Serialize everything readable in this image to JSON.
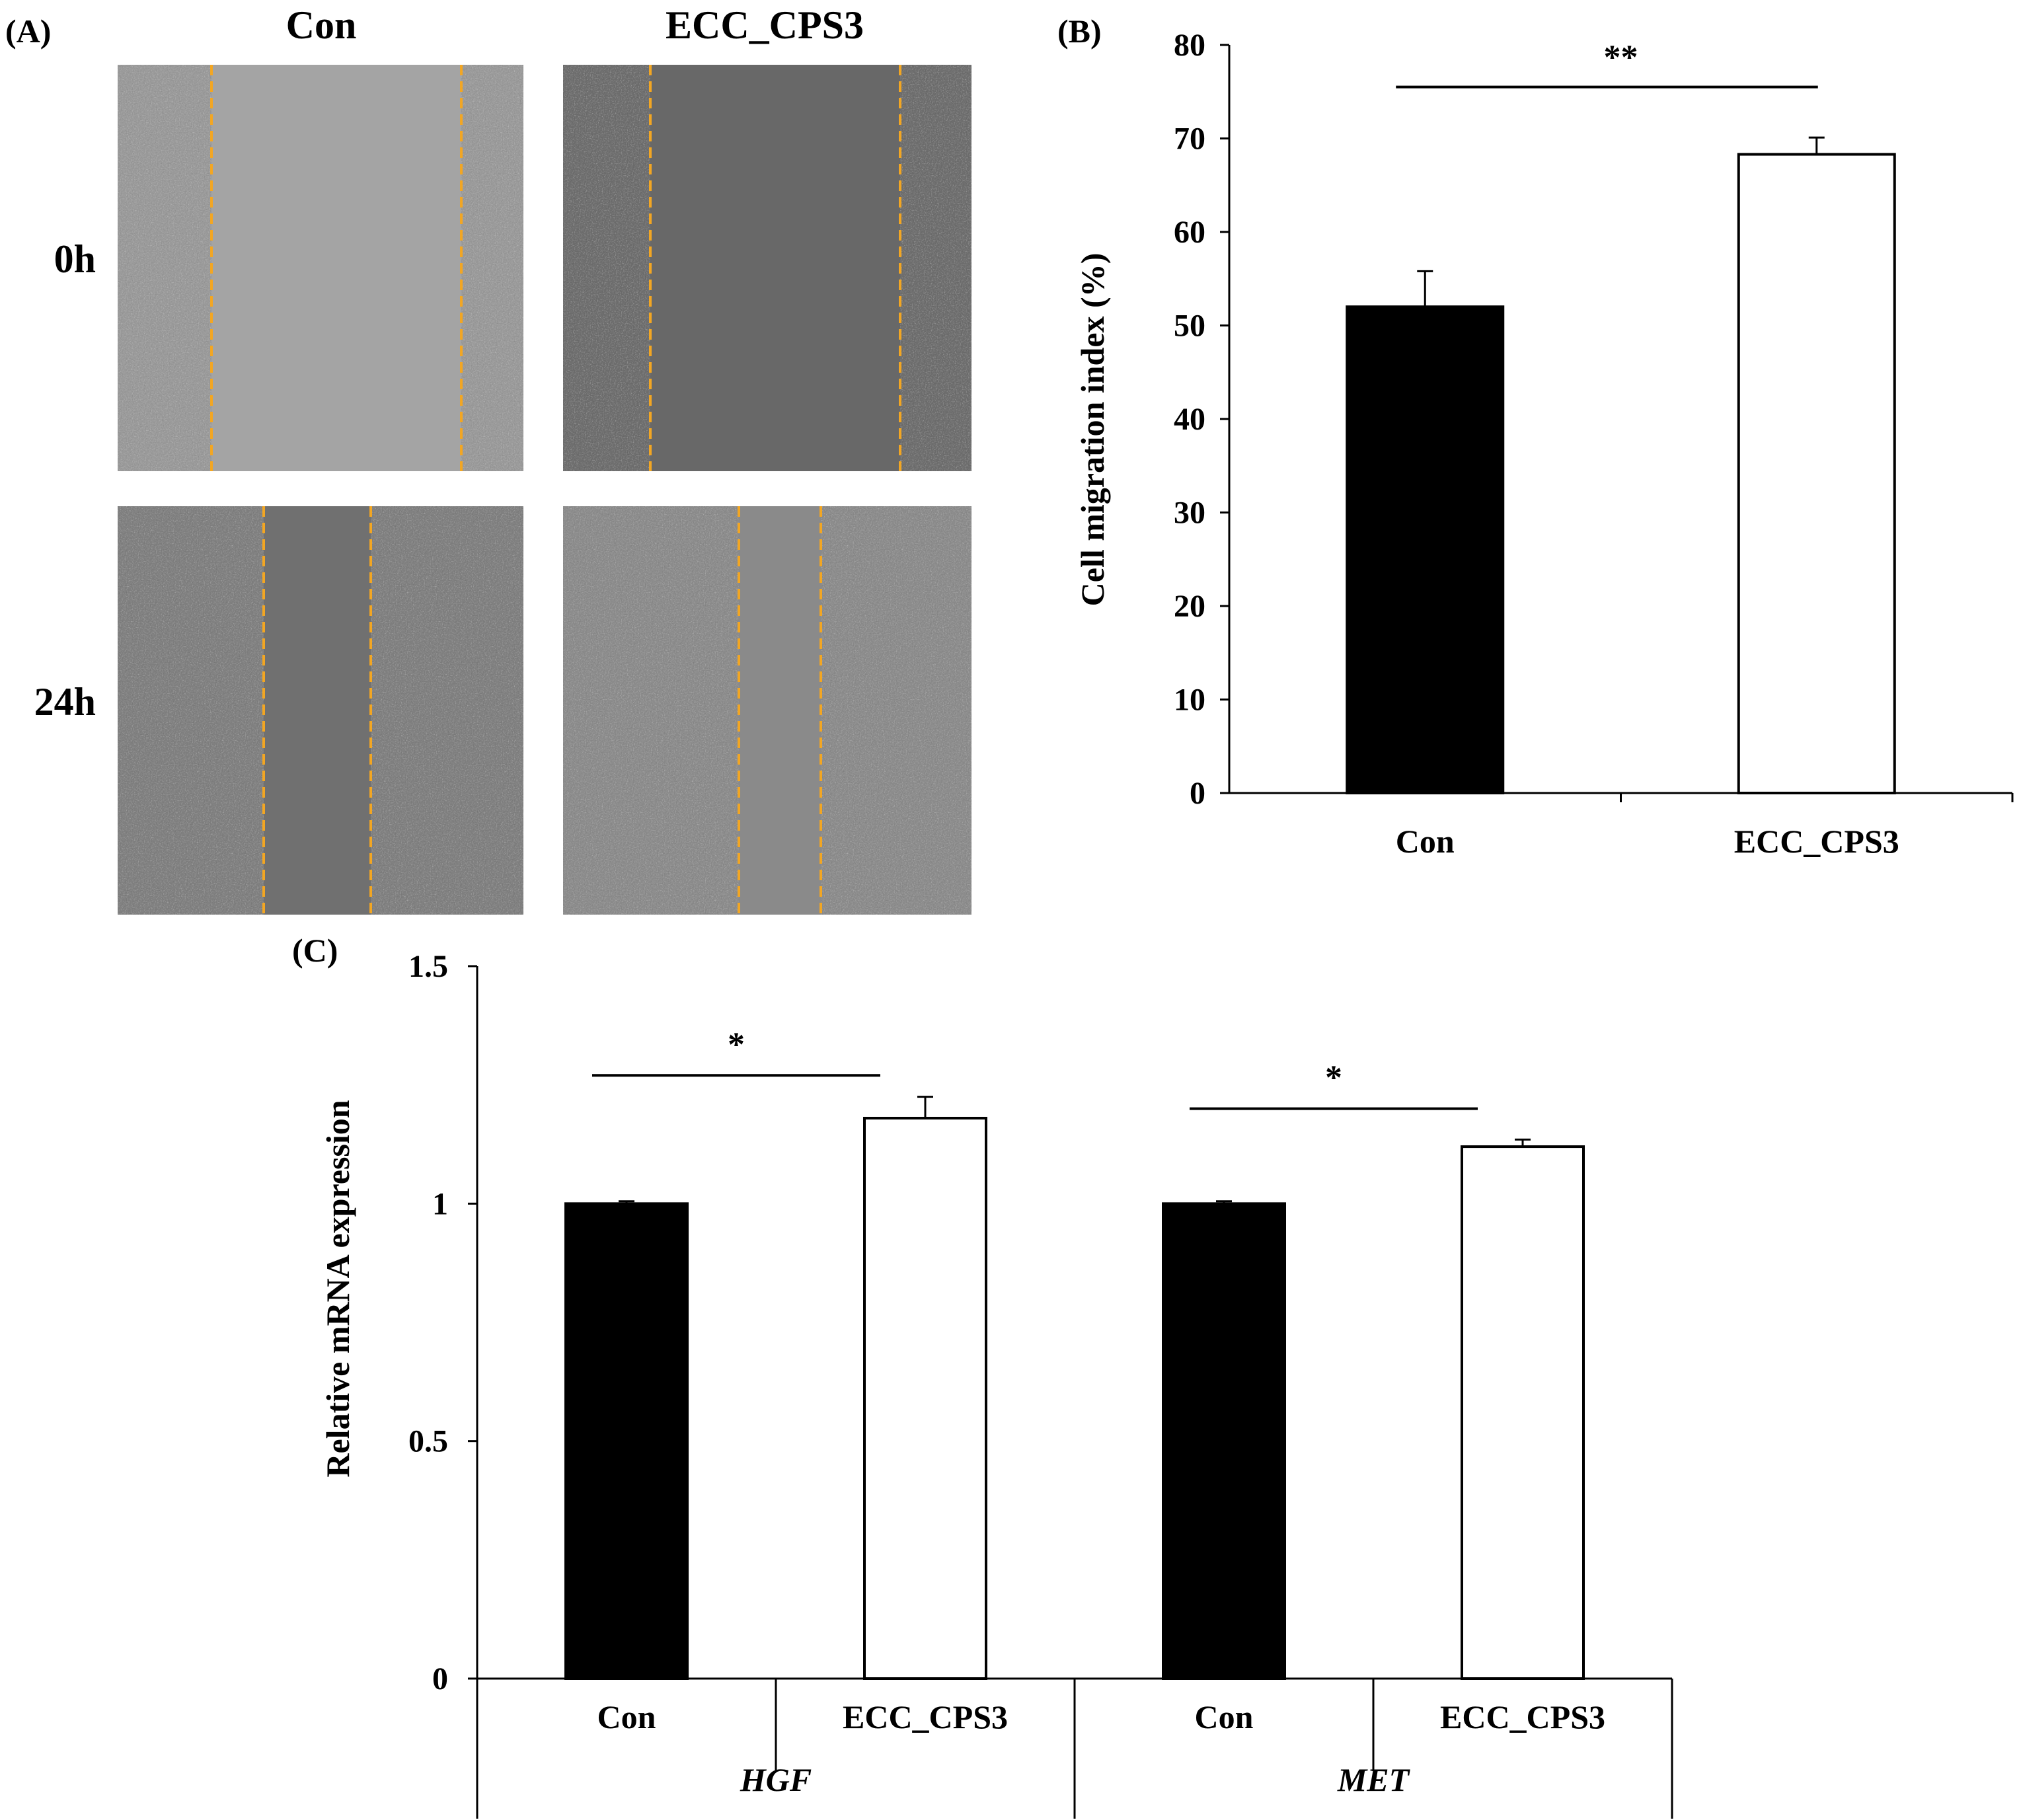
{
  "panel_a": {
    "label": "(A)",
    "columns": [
      "Con",
      "ECC_CPS3"
    ],
    "rows": [
      "0h",
      "24h"
    ],
    "guide_color": "#f2a623",
    "micrographs": [
      {
        "row": "0h",
        "col": "Con",
        "bg": "#9a9a9a",
        "gap_bg": "#a4a4a4"
      },
      {
        "row": "0h",
        "col": "ECC_CPS3",
        "bg": "#6e6e6e",
        "gap_bg": "#686868"
      },
      {
        "row": "24h",
        "col": "Con",
        "bg": "#808080",
        "gap_bg": "#707070"
      },
      {
        "row": "24h",
        "col": "ECC_CPS3",
        "bg": "#8c8c8c",
        "gap_bg": "#8a8a8a"
      }
    ]
  },
  "chart_data": [
    {
      "panel": "(B)",
      "type": "bar",
      "categories": [
        "Con",
        "ECC_CPS3"
      ],
      "values": [
        52,
        68.3
      ],
      "errors": [
        3.8,
        1.8
      ],
      "colors": [
        "#000000",
        "#ffffff"
      ],
      "ylabel": "Cell migration index (%)",
      "ylim": [
        0,
        80
      ],
      "yticks": [
        "0",
        "10",
        "20",
        "30",
        "40",
        "50",
        "60",
        "70",
        "80"
      ],
      "significance": [
        {
          "between": [
            "Con",
            "ECC_CPS3"
          ],
          "label": "**"
        }
      ]
    },
    {
      "panel": "(C)",
      "type": "bar",
      "groups": [
        "HGF",
        "MET"
      ],
      "categories": [
        "Con",
        "ECC_CPS3",
        "Con",
        "ECC_CPS3"
      ],
      "values": [
        1.0,
        1.18,
        1.0,
        1.12
      ],
      "errors": [
        0.005,
        0.045,
        0.005,
        0.015
      ],
      "colors": [
        "#000000",
        "#ffffff",
        "#000000",
        "#ffffff"
      ],
      "ylabel": "Relative mRNA expression",
      "ylim": [
        0,
        1.5
      ],
      "yticks": [
        "0",
        "0.5",
        "1",
        "1.5"
      ],
      "significance": [
        {
          "group": "HGF",
          "label": "*"
        },
        {
          "group": "MET",
          "label": "*"
        }
      ]
    }
  ]
}
